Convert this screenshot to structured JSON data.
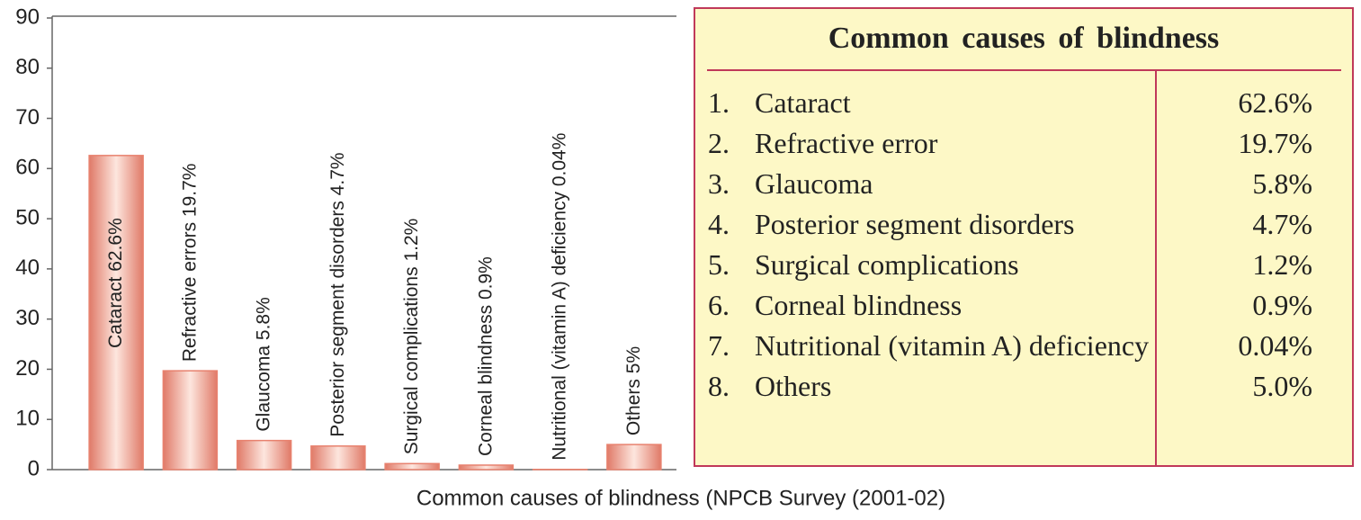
{
  "chart_data": {
    "type": "bar",
    "categories": [
      "Cataract",
      "Refractive errors",
      "Glaucoma",
      "Posterior segment disorders",
      "Surgical complications",
      "Corneal blindness",
      "Nutritional (vitamin A) deficiency",
      "Others"
    ],
    "values": [
      62.6,
      19.7,
      5.8,
      4.7,
      1.2,
      0.9,
      0.04,
      5
    ],
    "value_labels": [
      "62.6%",
      "19.7%",
      "5.8%",
      "4.7%",
      "1.2%",
      "0.9%",
      "0.04%",
      "5%"
    ],
    "color": "#e8826f",
    "ylim": [
      0,
      90
    ],
    "yticks": [
      0,
      10,
      20,
      30,
      40,
      50,
      60,
      70,
      80,
      90
    ],
    "caption": "Common causes of blindness (NPCB Survey (2001-02)"
  },
  "table": {
    "title": "Common causes of blindness",
    "rows": [
      [
        "1.",
        "Cataract",
        "62.6%"
      ],
      [
        "2.",
        "Refractive error",
        "19.7%"
      ],
      [
        "3.",
        "Glaucoma",
        "5.8%"
      ],
      [
        "4.",
        "Posterior segment disorders",
        "4.7%"
      ],
      [
        "5.",
        "Surgical complications",
        "1.2%"
      ],
      [
        "6.",
        "Corneal blindness",
        "0.9%"
      ],
      [
        "7.",
        "Nutritional (vitamin A) deficiency",
        "0.04%"
      ],
      [
        "8.",
        "Others",
        "5.0%"
      ]
    ]
  }
}
